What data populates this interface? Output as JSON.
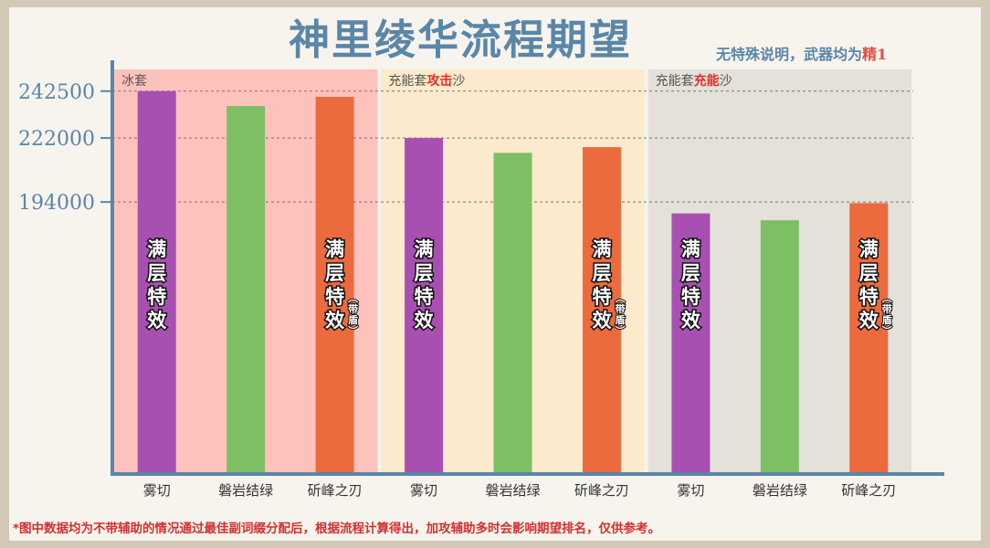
{
  "header": {
    "title": "神里绫华流程期望",
    "note_prefix": "无特殊说明，武器均为",
    "note_highlight": "精1"
  },
  "footnote": "*图中数据均为不带辅助的情况通过最佳副词缀分配后，根据流程计算得出，加攻辅助多时会影响期望排名，仅供参考。",
  "chart_data": {
    "type": "bar",
    "y_ticks": [
      194000,
      222000,
      242500
    ],
    "y_tick_labels": [
      "194000",
      "222000",
      "242500"
    ],
    "ylim": [
      75000,
      252000
    ],
    "groups": [
      {
        "label_parts": [
          {
            "text": "冰套",
            "highlight": false
          }
        ],
        "bg_color": "#ffb8b4",
        "bars": [
          {
            "category": "雾切",
            "value": 242500,
            "color": "#a850b2",
            "annotation": [
              "满",
              "层",
              "特",
              "效"
            ],
            "sub_annotation": ""
          },
          {
            "category": "磐岩结绿",
            "value": 236000,
            "color": "#7ebf63",
            "annotation": [],
            "sub_annotation": ""
          },
          {
            "category": "斫峰之刃",
            "value": 240000,
            "color": "#eb6a3e",
            "annotation": [
              "满",
              "层",
              "特",
              "效"
            ],
            "sub_annotation": "带盾"
          }
        ]
      },
      {
        "label_parts": [
          {
            "text": "充能套",
            "highlight": false
          },
          {
            "text": "攻击",
            "highlight": true
          },
          {
            "text": "沙",
            "highlight": false
          }
        ],
        "bg_color": "#fbe8c4",
        "bars": [
          {
            "category": "雾切",
            "value": 222000,
            "color": "#a850b2",
            "annotation": [
              "满",
              "层",
              "特",
              "效"
            ],
            "sub_annotation": ""
          },
          {
            "category": "磐岩结绿",
            "value": 215500,
            "color": "#7ebf63",
            "annotation": [],
            "sub_annotation": ""
          },
          {
            "category": "斫峰之刃",
            "value": 218000,
            "color": "#eb6a3e",
            "annotation": [
              "满",
              "层",
              "特",
              "效"
            ],
            "sub_annotation": "带盾"
          }
        ]
      },
      {
        "label_parts": [
          {
            "text": "充能套",
            "highlight": false
          },
          {
            "text": "充能",
            "highlight": true
          },
          {
            "text": "沙",
            "highlight": false
          }
        ],
        "bg_color": "#e0dcd6",
        "bars": [
          {
            "category": "雾切",
            "value": 189000,
            "color": "#a850b2",
            "annotation": [
              "满",
              "层",
              "特",
              "效"
            ],
            "sub_annotation": ""
          },
          {
            "category": "磐岩结绿",
            "value": 186000,
            "color": "#7ebf63",
            "annotation": [],
            "sub_annotation": ""
          },
          {
            "category": "斫峰之刃",
            "value": 193500,
            "color": "#eb6a3e",
            "annotation": [
              "满",
              "层",
              "特",
              "效"
            ],
            "sub_annotation": "带盾"
          }
        ]
      }
    ],
    "colors": {
      "axis": "#5a86a8",
      "tick_text": "#5a86a8",
      "group_label": "#555555",
      "group_label_highlight": "#e0302a",
      "gridline": "#777777",
      "annotation_text": "#ffffff",
      "annotation_stroke": "#111111"
    }
  }
}
